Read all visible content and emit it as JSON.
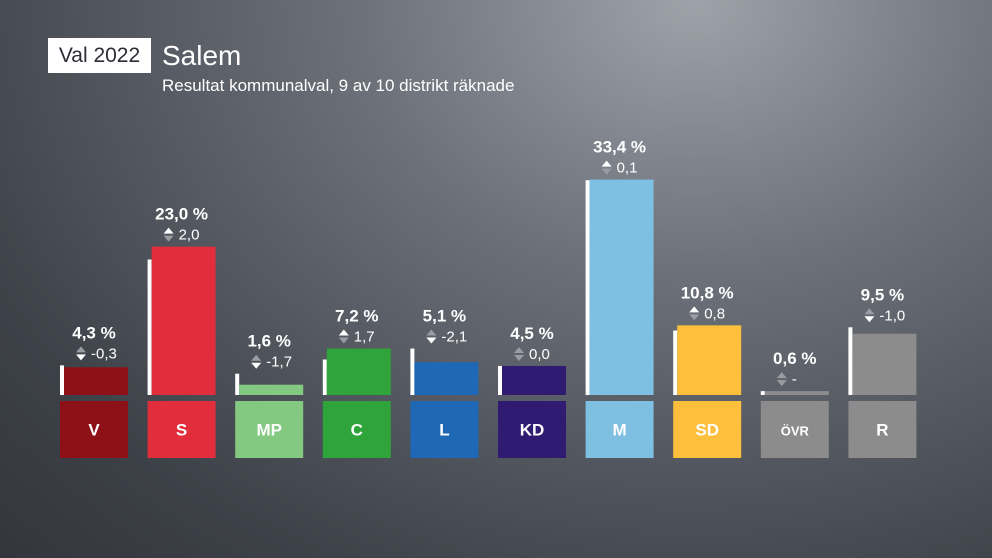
{
  "header": {
    "tag": "Val 2022",
    "title": "Salem",
    "subtitle": "Resultat kommunalval, 9 av 10 distrikt räknade"
  },
  "chart_data": {
    "type": "bar",
    "categories": [
      "V",
      "S",
      "MP",
      "C",
      "L",
      "KD",
      "M",
      "SD",
      "ÖVR",
      "R"
    ],
    "values": [
      4.3,
      23.0,
      1.6,
      7.2,
      5.1,
      4.5,
      33.4,
      10.8,
      0.6,
      9.5
    ],
    "value_labels": [
      "4,3 %",
      "23,0 %",
      "1,6 %",
      "7,2 %",
      "5,1 %",
      "4,5 %",
      "33,4 %",
      "10,8 %",
      "0,6 %",
      "9,5 %"
    ],
    "changes": [
      -0.3,
      2.0,
      -1.7,
      1.7,
      -2.1,
      0.0,
      0.1,
      0.8,
      null,
      -1.0
    ],
    "change_labels": [
      "-0,3",
      "2,0",
      "-1,7",
      "1,7",
      "-2,1",
      "0,0",
      "0,1",
      "0,8",
      "-",
      "-1,0"
    ],
    "change_directions": [
      "down",
      "up",
      "down",
      "up",
      "down",
      "none",
      "up",
      "up",
      "none",
      "down"
    ],
    "previous_values": [
      4.6,
      21.0,
      3.3,
      5.5,
      7.2,
      4.5,
      33.3,
      10.0,
      0.6,
      10.5
    ],
    "colors": [
      "#8e1118",
      "#e12d3c",
      "#83c982",
      "#2ea43a",
      "#1f68b5",
      "#311a72",
      "#7fbfe2",
      "#fdbf3c",
      "#8c8c8c",
      "#8c8c8c"
    ],
    "previous_marker_color": "#ffffff"
  }
}
